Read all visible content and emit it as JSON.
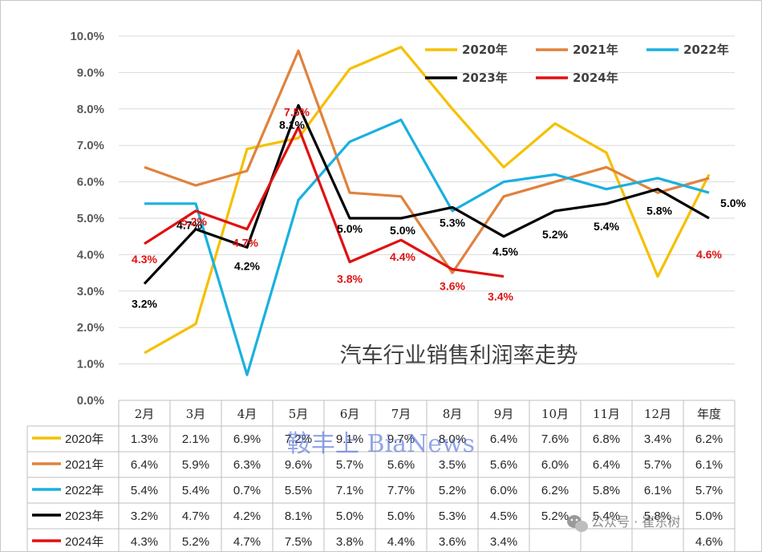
{
  "chart_data": {
    "type": "line",
    "title": "汽车行业销售利润率走势",
    "categories": [
      "2月",
      "3月",
      "4月",
      "5月",
      "6月",
      "7月",
      "8月",
      "9月",
      "10月",
      "11月",
      "12月",
      "年度"
    ],
    "ylim": [
      0,
      10
    ],
    "yticks": [
      "0.0%",
      "1.0%",
      "2.0%",
      "3.0%",
      "4.0%",
      "5.0%",
      "6.0%",
      "7.0%",
      "8.0%",
      "9.0%",
      "10.0%"
    ],
    "grid": true,
    "legend_position": "top-right",
    "series": [
      {
        "name": "2020年",
        "color": "#f5c000",
        "values": [
          1.3,
          2.1,
          6.9,
          7.2,
          9.1,
          9.7,
          8.0,
          6.4,
          7.6,
          6.8,
          3.4,
          6.2
        ],
        "table": [
          "1.3%",
          "2.1%",
          "6.9%",
          "7.2%",
          "9.1%",
          "9.7%",
          "8.0%",
          "6.4%",
          "7.6%",
          "6.8%",
          "3.4%",
          "6.2%"
        ]
      },
      {
        "name": "2021年",
        "color": "#e0823d",
        "values": [
          6.4,
          5.9,
          6.3,
          9.6,
          5.7,
          5.6,
          3.5,
          5.6,
          6.0,
          6.4,
          5.7,
          6.1
        ],
        "table": [
          "6.4%",
          "5.9%",
          "6.3%",
          "9.6%",
          "5.7%",
          "5.6%",
          "3.5%",
          "5.6%",
          "6.0%",
          "6.4%",
          "5.7%",
          "6.1%"
        ]
      },
      {
        "name": "2022年",
        "color": "#1ab0e0",
        "values": [
          5.4,
          5.4,
          0.7,
          5.5,
          7.1,
          7.7,
          5.2,
          6.0,
          6.2,
          5.8,
          6.1,
          5.7
        ],
        "table": [
          "5.4%",
          "5.4%",
          "0.7%",
          "5.5%",
          "7.1%",
          "7.7%",
          "5.2%",
          "6.0%",
          "6.2%",
          "5.8%",
          "6.1%",
          "5.7%"
        ]
      },
      {
        "name": "2023年",
        "color": "#000000",
        "values": [
          3.2,
          4.7,
          4.2,
          8.1,
          5.0,
          5.0,
          5.3,
          4.5,
          5.2,
          5.4,
          5.8,
          5.0
        ],
        "table": [
          "3.2%",
          "4.7%",
          "4.2%",
          "8.1%",
          "5.0%",
          "5.0%",
          "5.3%",
          "4.5%",
          "5.2%",
          "5.4%",
          "5.8%",
          "5.0%"
        ]
      },
      {
        "name": "2024年",
        "color": "#e01010",
        "values": [
          4.3,
          5.2,
          4.7,
          7.5,
          3.8,
          4.4,
          3.6,
          3.4,
          null,
          null,
          null,
          4.6
        ],
        "table": [
          "4.3%",
          "5.2%",
          "4.7%",
          "7.5%",
          "3.8%",
          "4.4%",
          "3.6%",
          "3.4%",
          "",
          "",
          "",
          "4.6%"
        ]
      }
    ],
    "data_labels": [
      {
        "series": 3,
        "index": 0,
        "text": "3.2%"
      },
      {
        "series": 4,
        "index": 0,
        "text": "4.3%"
      },
      {
        "series": 3,
        "index": 1,
        "text": "4.7%"
      },
      {
        "series": 4,
        "index": 1,
        "text": "5.2%"
      },
      {
        "series": 3,
        "index": 2,
        "text": "4.2%"
      },
      {
        "series": 4,
        "index": 2,
        "text": "4.7%"
      },
      {
        "series": 3,
        "index": 3,
        "text": "8.1%"
      },
      {
        "series": 4,
        "index": 3,
        "text": "7.5%"
      },
      {
        "series": 3,
        "index": 4,
        "text": "5.0%"
      },
      {
        "series": 4,
        "index": 4,
        "text": "3.8%"
      },
      {
        "series": 3,
        "index": 5,
        "text": "5.0%"
      },
      {
        "series": 4,
        "index": 5,
        "text": "4.4%"
      },
      {
        "series": 3,
        "index": 6,
        "text": "5.3%"
      },
      {
        "series": 4,
        "index": 6,
        "text": "3.6%"
      },
      {
        "series": 3,
        "index": 7,
        "text": "4.5%"
      },
      {
        "series": 4,
        "index": 7,
        "text": "3.4%"
      },
      {
        "series": 3,
        "index": 8,
        "text": "5.2%"
      },
      {
        "series": 3,
        "index": 9,
        "text": "5.4%"
      },
      {
        "series": 3,
        "index": 10,
        "text": "5.8%"
      },
      {
        "series": 3,
        "index": 11,
        "text": "5.0%"
      },
      {
        "series": 4,
        "index": 11,
        "text": "4.6%"
      }
    ]
  },
  "watermark": "鞍丰上 BiaNews",
  "source_badge": "公众号 · 崔东树"
}
